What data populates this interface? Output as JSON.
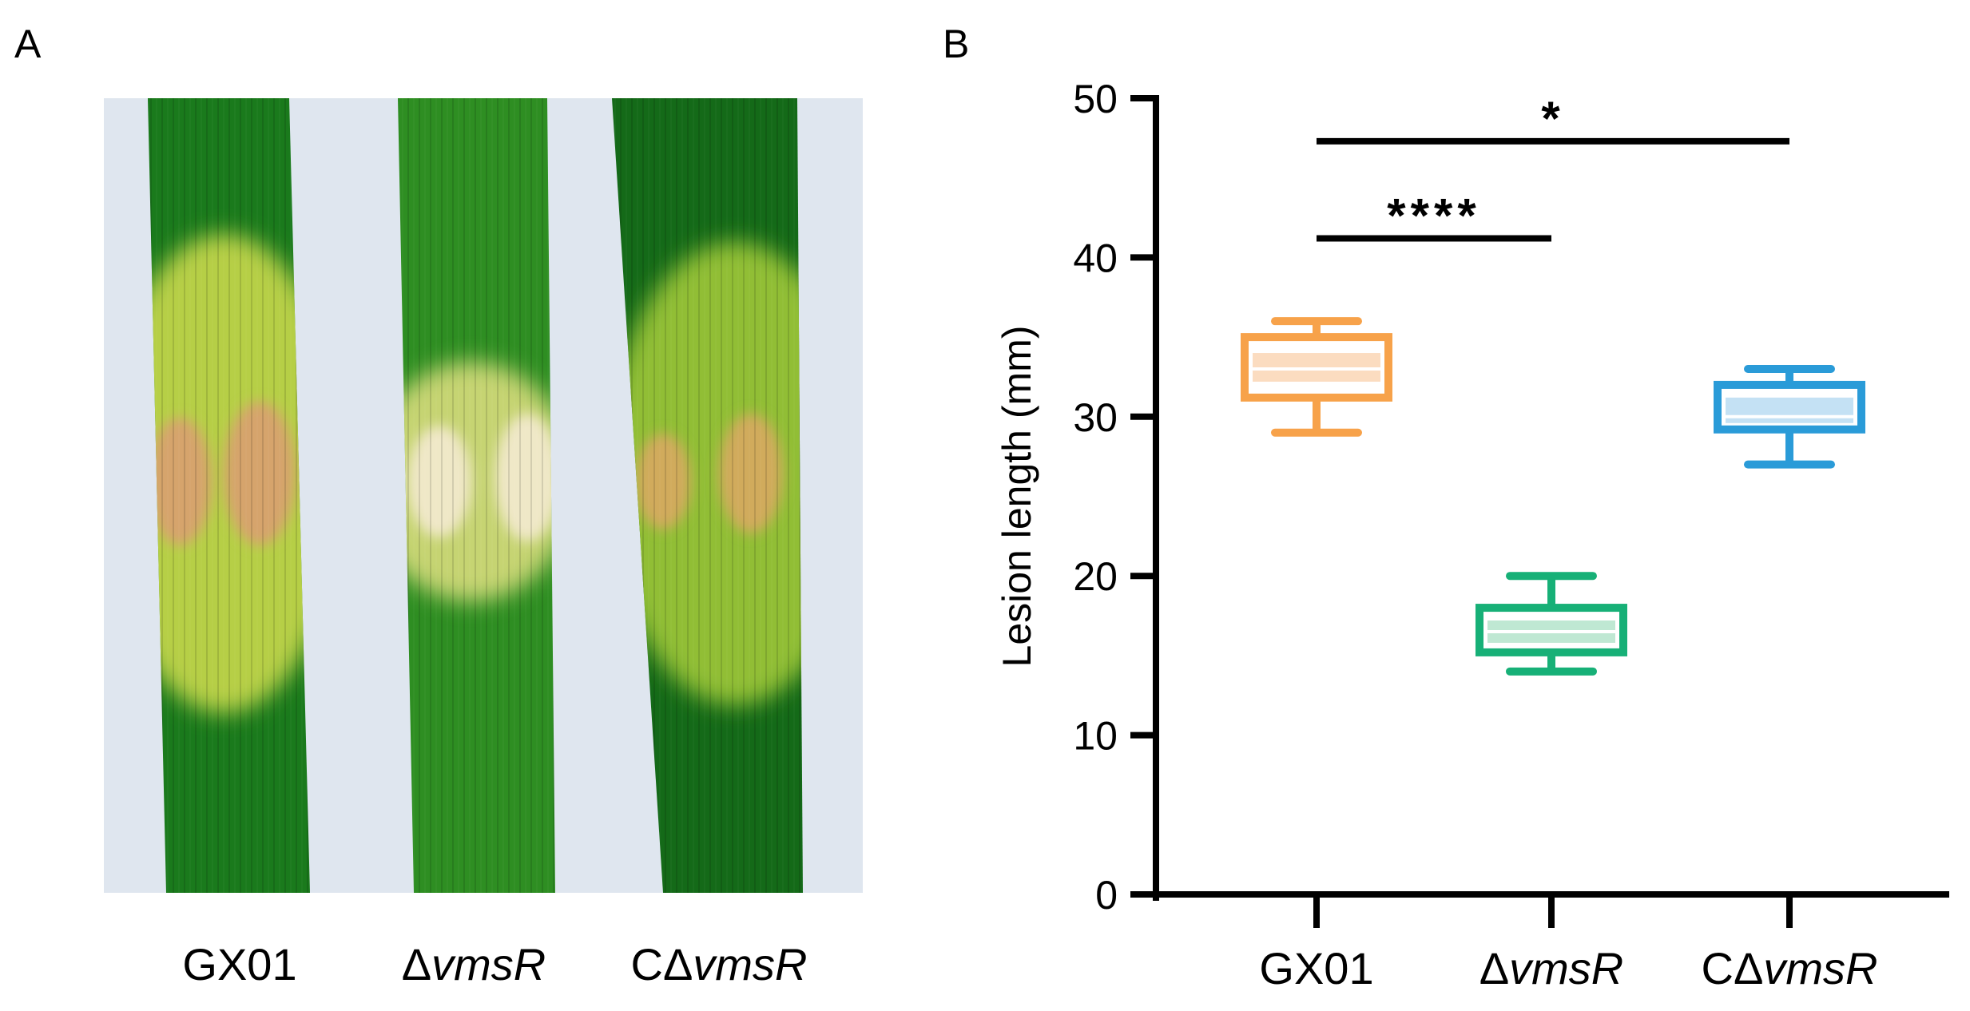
{
  "panel_a": {
    "letter": "A",
    "leaves": [
      {
        "label_prefix": "",
        "label_italic": "",
        "label_plain": "GX01",
        "leaf_color": "#1a7a1c",
        "lesion_color": "#c8d84a",
        "center_color": "#d9a070"
      },
      {
        "label_prefix": "Δ",
        "label_italic": "vmsR",
        "label_plain": "",
        "leaf_color": "#2e8e22",
        "lesion_color": "#d6dc7a",
        "center_color": "#f4ead0"
      },
      {
        "label_prefix": "CΔ",
        "label_italic": "vmsR",
        "label_plain": "",
        "leaf_color": "#146a18",
        "lesion_color": "#9ec838",
        "center_color": "#d8a860"
      }
    ],
    "background_color": "#dfe6ef"
  },
  "chart_data": {
    "panel_letter": "B",
    "type": "box",
    "ylabel": "Lesion length (mm)",
    "xlabel": "",
    "ylim": [
      0,
      50
    ],
    "yticks": [
      0,
      10,
      20,
      30,
      40,
      50
    ],
    "categories": [
      {
        "prefix": "",
        "italic": "",
        "plain": "GX01"
      },
      {
        "prefix": "Δ",
        "italic": "vmsR",
        "plain": ""
      },
      {
        "prefix": "CΔ",
        "italic": "vmsR",
        "plain": ""
      }
    ],
    "boxes": [
      {
        "min": 29,
        "q1": 31.2,
        "median": 33,
        "q3": 35,
        "max": 36,
        "mean_band": [
          32.2,
          34.0
        ],
        "color": "#f7a24a",
        "fill": "#fbdcc0"
      },
      {
        "min": 14,
        "q1": 15.2,
        "median": 16.5,
        "q3": 18,
        "max": 20,
        "mean_band": [
          15.8,
          17.2
        ],
        "color": "#17b077",
        "fill": "#bfe8d3"
      },
      {
        "min": 27,
        "q1": 29.2,
        "median": 30,
        "q3": 32,
        "max": 33,
        "mean_band": [
          29.6,
          31.2
        ],
        "color": "#2a9bd8",
        "fill": "#c4e1f4"
      }
    ],
    "significance": [
      {
        "from": 0,
        "to": 2,
        "y": 47.3,
        "label": "*"
      },
      {
        "from": 0,
        "to": 1,
        "y": 41.2,
        "label": "****"
      }
    ]
  }
}
